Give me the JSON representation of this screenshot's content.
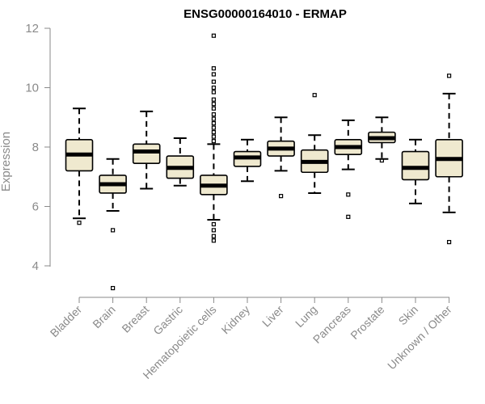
{
  "chart_data": {
    "type": "box",
    "title": "ENSG00000164010 - ERMAP",
    "xlabel": "",
    "ylabel": "Expression",
    "ylim": [
      3,
      12.2
    ],
    "yticks": [
      4,
      6,
      8,
      10,
      12
    ],
    "grid": false,
    "categories": [
      "Bladder",
      "Brain",
      "Breast",
      "Gastric",
      "Hematopoietic cells",
      "Kidney",
      "Liver",
      "Lung",
      "Pancreas",
      "Prostate",
      "Skin",
      "Unknown / Other"
    ],
    "boxes": [
      {
        "category": "Bladder",
        "min": 5.6,
        "q1": 7.2,
        "median": 7.75,
        "q3": 8.25,
        "max": 9.3,
        "outliers": [
          5.45
        ]
      },
      {
        "category": "Brain",
        "min": 5.85,
        "q1": 6.45,
        "median": 6.75,
        "q3": 7.05,
        "max": 7.6,
        "outliers": [
          5.2,
          3.25
        ]
      },
      {
        "category": "Breast",
        "min": 6.6,
        "q1": 7.45,
        "median": 7.85,
        "q3": 8.1,
        "max": 9.2,
        "outliers": []
      },
      {
        "category": "Gastric",
        "min": 6.7,
        "q1": 6.95,
        "median": 7.3,
        "q3": 7.7,
        "max": 8.3,
        "outliers": []
      },
      {
        "category": "Hematopoietic cells",
        "min": 5.55,
        "q1": 6.4,
        "median": 6.7,
        "q3": 7.05,
        "max": 8.1,
        "outliers": [
          11.75,
          10.65,
          10.45,
          10.2,
          10.0,
          9.85,
          9.6,
          9.45,
          9.3,
          9.1,
          8.95,
          8.8,
          8.65,
          8.5,
          8.35,
          8.2,
          5.4,
          5.2,
          5.0,
          4.85
        ]
      },
      {
        "category": "Kidney",
        "min": 6.85,
        "q1": 7.35,
        "median": 7.65,
        "q3": 7.85,
        "max": 8.25,
        "outliers": []
      },
      {
        "category": "Liver",
        "min": 7.2,
        "q1": 7.7,
        "median": 7.95,
        "q3": 8.2,
        "max": 9.0,
        "outliers": [
          6.35
        ]
      },
      {
        "category": "Lung",
        "min": 6.45,
        "q1": 7.15,
        "median": 7.5,
        "q3": 7.9,
        "max": 8.4,
        "outliers": [
          9.75
        ]
      },
      {
        "category": "Pancreas",
        "min": 7.25,
        "q1": 7.75,
        "median": 8.0,
        "q3": 8.25,
        "max": 8.9,
        "outliers": [
          6.4,
          5.65
        ]
      },
      {
        "category": "Prostate",
        "min": 7.6,
        "q1": 8.15,
        "median": 8.3,
        "q3": 8.5,
        "max": 9.0,
        "outliers": [
          7.55
        ]
      },
      {
        "category": "Skin",
        "min": 6.1,
        "q1": 6.9,
        "median": 7.3,
        "q3": 7.85,
        "max": 8.25,
        "outliers": []
      },
      {
        "category": "Unknown / Other",
        "min": 5.8,
        "q1": 7.0,
        "median": 7.6,
        "q3": 8.25,
        "max": 9.8,
        "outliers": [
          10.4,
          4.8
        ]
      }
    ],
    "colors": {
      "box_fill": "#efe9cf",
      "stroke": "#000000",
      "axis": "#8a8a8a"
    }
  }
}
